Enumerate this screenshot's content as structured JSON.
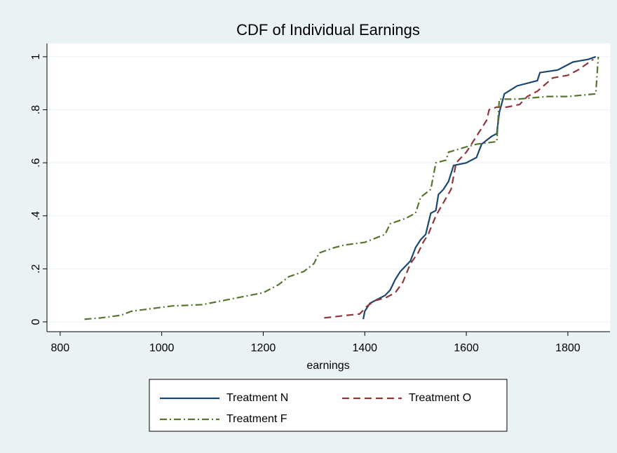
{
  "chart_data": {
    "type": "line",
    "title": "CDF of Individual Earnings",
    "x_label": "earnings",
    "xlim": [
      774,
      1883
    ],
    "xticks": [
      800,
      1000,
      1200,
      1400,
      1600,
      1800
    ],
    "ylim": [
      -0.037,
      1.05
    ],
    "yticks": [
      0,
      {
        "value": 0.2,
        "label": ".2"
      },
      {
        "value": 0.4,
        "label": ".4"
      },
      {
        "value": 0.6,
        "label": ".6"
      },
      {
        "value": 0.8,
        "label": ".8"
      },
      1
    ],
    "grid": true,
    "legend": "bottom",
    "series": [
      {
        "name": "Treatment N",
        "color": "#1a476f",
        "linestyle": "solid",
        "x": [
          1397,
          1400,
          1410,
          1420,
          1440,
          1450,
          1460,
          1470,
          1480,
          1490,
          1500,
          1510,
          1520,
          1530,
          1540,
          1545,
          1555,
          1565,
          1575,
          1600,
          1620,
          1630,
          1650,
          1660,
          1665,
          1675,
          1700,
          1740,
          1745,
          1780,
          1800,
          1810,
          1840,
          1855
        ],
        "values": [
          0.01,
          0.04,
          0.07,
          0.08,
          0.1,
          0.12,
          0.16,
          0.19,
          0.21,
          0.23,
          0.28,
          0.31,
          0.33,
          0.41,
          0.42,
          0.48,
          0.5,
          0.53,
          0.59,
          0.6,
          0.62,
          0.67,
          0.7,
          0.71,
          0.79,
          0.86,
          0.89,
          0.91,
          0.94,
          0.95,
          0.97,
          0.98,
          0.99,
          1.0
        ]
      },
      {
        "name": "Treatment O",
        "color": "#90353b",
        "linestyle": "dashed",
        "x": [
          1320,
          1390,
          1405,
          1420,
          1440,
          1460,
          1475,
          1490,
          1505,
          1515,
          1525,
          1540,
          1555,
          1570,
          1580,
          1600,
          1620,
          1640,
          1645,
          1660,
          1680,
          1705,
          1720,
          1740,
          1770,
          1800,
          1820,
          1850
        ],
        "values": [
          0.015,
          0.03,
          0.06,
          0.08,
          0.09,
          0.11,
          0.15,
          0.22,
          0.26,
          0.3,
          0.33,
          0.4,
          0.45,
          0.5,
          0.6,
          0.64,
          0.7,
          0.76,
          0.8,
          0.81,
          0.81,
          0.82,
          0.85,
          0.87,
          0.92,
          0.93,
          0.95,
          0.99
        ]
      },
      {
        "name": "Treatment F",
        "color": "#55752f",
        "linestyle": "dashdot",
        "x": [
          848,
          880,
          920,
          940,
          980,
          1020,
          1080,
          1120,
          1160,
          1200,
          1230,
          1250,
          1280,
          1300,
          1310,
          1340,
          1360,
          1400,
          1440,
          1450,
          1480,
          1500,
          1510,
          1530,
          1540,
          1560,
          1565,
          1600,
          1620,
          1660,
          1665,
          1700,
          1760,
          1800,
          1855,
          1860
        ],
        "values": [
          0.01,
          0.015,
          0.025,
          0.04,
          0.05,
          0.06,
          0.065,
          0.08,
          0.095,
          0.11,
          0.14,
          0.17,
          0.19,
          0.22,
          0.26,
          0.28,
          0.29,
          0.3,
          0.33,
          0.37,
          0.39,
          0.41,
          0.47,
          0.5,
          0.6,
          0.61,
          0.64,
          0.66,
          0.67,
          0.68,
          0.84,
          0.84,
          0.85,
          0.85,
          0.86,
          1.0
        ]
      }
    ]
  }
}
